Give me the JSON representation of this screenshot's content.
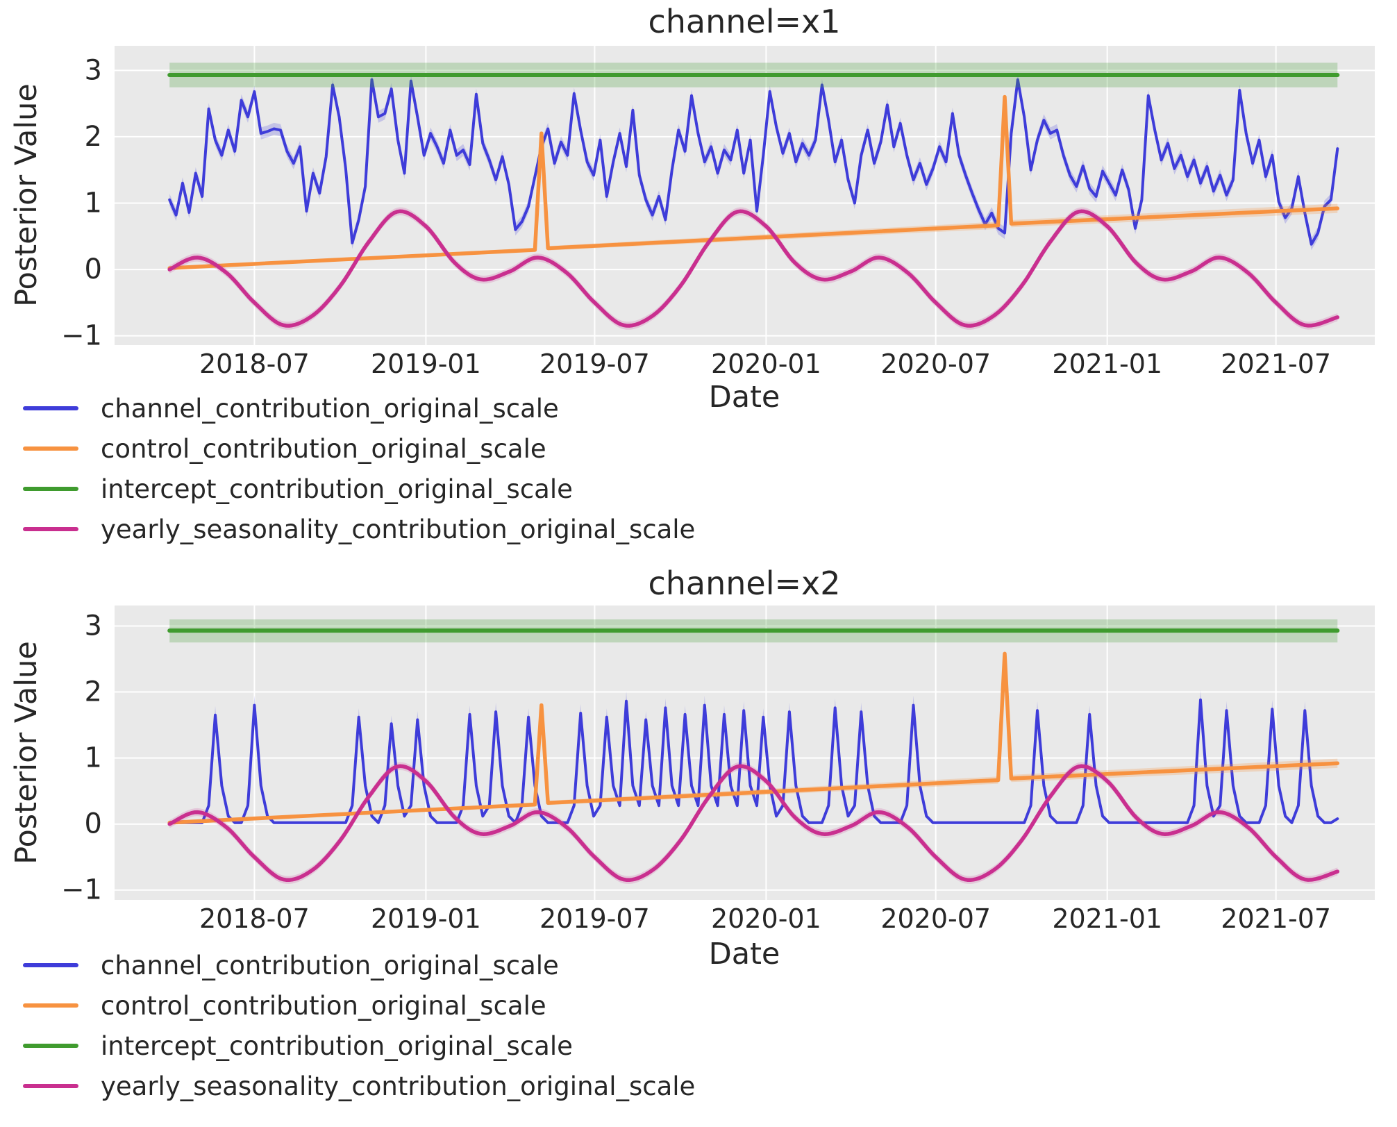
{
  "style": {
    "figure_bg": "#ffffff",
    "plot_bg": "#e9e9e9",
    "grid_color": "#ffffff",
    "text_color": "#262626"
  },
  "shared": {
    "x_ticks": [
      {
        "date": "2018-07-01",
        "label": "2018-07"
      },
      {
        "date": "2019-01-01",
        "label": "2019-01"
      },
      {
        "date": "2019-07-01",
        "label": "2019-07"
      },
      {
        "date": "2020-01-01",
        "label": "2020-01"
      },
      {
        "date": "2020-07-01",
        "label": "2020-07"
      },
      {
        "date": "2021-01-01",
        "label": "2021-01"
      },
      {
        "date": "2021-07-01",
        "label": "2021-07"
      }
    ],
    "seasonal_points": [
      [
        "2018-04-01",
        0.0
      ],
      [
        "2018-05-01",
        0.18
      ],
      [
        "2018-06-01",
        -0.05
      ],
      [
        "2018-07-01",
        -0.5
      ],
      [
        "2018-08-01",
        -0.84
      ],
      [
        "2018-09-01",
        -0.7
      ],
      [
        "2018-10-01",
        -0.25
      ],
      [
        "2018-11-01",
        0.42
      ],
      [
        "2018-12-01",
        0.87
      ],
      [
        "2019-01-01",
        0.65
      ],
      [
        "2019-02-01",
        0.1
      ],
      [
        "2019-03-01",
        -0.15
      ],
      [
        "2019-04-01",
        -0.03
      ],
      [
        "2019-05-01",
        0.18
      ],
      [
        "2019-06-01",
        -0.05
      ],
      [
        "2019-07-01",
        -0.5
      ],
      [
        "2019-08-01",
        -0.84
      ],
      [
        "2019-09-01",
        -0.7
      ],
      [
        "2019-10-01",
        -0.25
      ],
      [
        "2019-11-01",
        0.42
      ],
      [
        "2019-12-01",
        0.87
      ],
      [
        "2020-01-01",
        0.65
      ],
      [
        "2020-02-01",
        0.1
      ],
      [
        "2020-03-01",
        -0.15
      ],
      [
        "2020-04-01",
        -0.03
      ],
      [
        "2020-05-01",
        0.18
      ],
      [
        "2020-06-01",
        -0.05
      ],
      [
        "2020-07-01",
        -0.5
      ],
      [
        "2020-08-01",
        -0.84
      ],
      [
        "2020-09-01",
        -0.7
      ],
      [
        "2020-10-01",
        -0.25
      ],
      [
        "2020-11-01",
        0.42
      ],
      [
        "2020-12-01",
        0.87
      ],
      [
        "2021-01-01",
        0.65
      ],
      [
        "2021-02-01",
        0.1
      ],
      [
        "2021-03-01",
        -0.15
      ],
      [
        "2021-04-01",
        -0.03
      ],
      [
        "2021-05-01",
        0.18
      ],
      [
        "2021-06-01",
        -0.05
      ],
      [
        "2021-07-01",
        -0.5
      ],
      [
        "2021-08-01",
        -0.84
      ],
      [
        "2021-09-05",
        -0.72
      ]
    ]
  },
  "chart_data": [
    {
      "type": "line",
      "title": "channel=x1",
      "xlabel": "Date",
      "ylabel": "Posterior Value",
      "xlim": [
        "2018-02-01",
        "2021-10-15"
      ],
      "ylim": [
        -1.14,
        3.37
      ],
      "data_range": [
        "2018-04-01",
        "2021-09-05"
      ],
      "y_ticks": [
        {
          "v": 3,
          "label": "3"
        },
        {
          "v": 2,
          "label": "2"
        },
        {
          "v": 1,
          "label": "1"
        },
        {
          "v": 0,
          "label": "0"
        },
        {
          "v": -1,
          "label": "−1"
        }
      ],
      "grid": true,
      "legend_position": "below-left",
      "series": [
        {
          "name": "channel_contribution_original_scale",
          "short": "channel",
          "kind": "weekly",
          "start": "2018-04-01",
          "step_days": 7,
          "color": "#3e3cd9",
          "band_color": "rgba(62,60,217,0.22)",
          "band": 0.09,
          "width": 4,
          "values": [
            1.05,
            0.82,
            1.3,
            0.86,
            1.45,
            1.1,
            2.42,
            1.95,
            1.72,
            2.1,
            1.78,
            2.55,
            2.3,
            2.68,
            2.05,
            2.08,
            2.12,
            2.1,
            1.78,
            1.6,
            1.85,
            0.88,
            1.45,
            1.15,
            1.7,
            2.78,
            2.3,
            1.52,
            0.4,
            0.75,
            1.25,
            2.86,
            2.3,
            2.35,
            2.72,
            1.95,
            1.45,
            2.84,
            2.3,
            1.72,
            2.05,
            1.85,
            1.6,
            2.1,
            1.72,
            1.8,
            1.58,
            2.64,
            1.9,
            1.65,
            1.35,
            1.7,
            1.28,
            0.6,
            0.72,
            0.95,
            1.4,
            1.85,
            2.12,
            1.6,
            1.92,
            1.72,
            2.65,
            2.1,
            1.62,
            1.42,
            1.95,
            1.1,
            1.62,
            2.05,
            1.55,
            2.4,
            1.42,
            1.05,
            0.82,
            1.1,
            0.75,
            1.5,
            2.1,
            1.78,
            2.62,
            2.05,
            1.62,
            1.85,
            1.45,
            1.8,
            1.65,
            2.1,
            1.45,
            1.95,
            0.88,
            1.72,
            2.68,
            2.15,
            1.75,
            2.05,
            1.62,
            1.9,
            1.72,
            1.95,
            2.78,
            2.25,
            1.62,
            1.95,
            1.35,
            1.0,
            1.72,
            2.1,
            1.6,
            1.92,
            2.48,
            1.85,
            2.2,
            1.72,
            1.35,
            1.6,
            1.28,
            1.52,
            1.85,
            1.62,
            2.35,
            1.72,
            1.42,
            1.15,
            0.9,
            0.68,
            0.85,
            0.62,
            0.55,
            2.05,
            2.86,
            2.3,
            1.5,
            1.95,
            2.25,
            2.05,
            2.1,
            1.72,
            1.42,
            1.25,
            1.56,
            1.22,
            1.1,
            1.48,
            1.3,
            1.12,
            1.5,
            1.2,
            0.62,
            1.05,
            2.62,
            2.1,
            1.65,
            1.9,
            1.52,
            1.72,
            1.4,
            1.65,
            1.3,
            1.55,
            1.18,
            1.42,
            1.12,
            1.35,
            2.7,
            2.05,
            1.6,
            1.95,
            1.4,
            1.72,
            1.02,
            0.78,
            0.92,
            1.4,
            0.85,
            0.38,
            0.55,
            0.95,
            1.05,
            1.82
          ]
        },
        {
          "name": "control_contribution_original_scale",
          "short": "control",
          "kind": "trend",
          "color": "#f79240",
          "band_color": "rgba(247,146,64,0.25)",
          "band_grow": true,
          "band_min": 0.015,
          "band_max": 0.07,
          "width": 5.5,
          "points": [
            [
              "2018-04-01",
              0.02
            ],
            [
              "2019-04-28",
              0.295
            ],
            [
              "2019-05-05",
              2.05
            ],
            [
              "2019-05-12",
              0.32
            ],
            [
              "2020-09-06",
              0.665
            ],
            [
              "2020-09-13",
              2.6
            ],
            [
              "2020-09-20",
              0.69
            ],
            [
              "2021-09-05",
              0.92
            ]
          ]
        },
        {
          "name": "intercept_contribution_original_scale",
          "short": "intercept",
          "kind": "const",
          "value": 2.93,
          "band_lo": 2.745,
          "band_hi": 3.115,
          "color": "#3f9b2e",
          "band_color": "rgba(63,155,46,0.25)",
          "width": 6
        },
        {
          "name": "yearly_seasonality_contribution_original_scale",
          "short": "yearly-seasonality",
          "kind": "seasonal",
          "band": 0.06,
          "color": "#c92f8f",
          "band_color": "rgba(201,47,143,0.18)",
          "width": 5.5
        }
      ]
    },
    {
      "type": "line",
      "title": "channel=x2",
      "xlabel": "Date",
      "ylabel": "Posterior Value",
      "xlim": [
        "2018-02-01",
        "2021-10-15"
      ],
      "ylim": [
        -1.15,
        3.31
      ],
      "data_range": [
        "2018-04-01",
        "2021-09-05"
      ],
      "y_ticks": [
        {
          "v": 3,
          "label": "3"
        },
        {
          "v": 2,
          "label": "2"
        },
        {
          "v": 1,
          "label": "1"
        },
        {
          "v": 0,
          "label": "0"
        },
        {
          "v": -1,
          "label": "−1"
        }
      ],
      "grid": true,
      "legend_position": "below-left",
      "series": [
        {
          "name": "channel_contribution_original_scale",
          "short": "channel",
          "kind": "weekly",
          "start": "2018-04-01",
          "step_days": 7,
          "color": "#3e3cd9",
          "band_color": "rgba(62,60,217,0.22)",
          "band_prop": true,
          "width": 4,
          "values": [
            0.02,
            0.02,
            0.02,
            0.02,
            0.02,
            0.02,
            0.28,
            1.65,
            0.58,
            0.12,
            0.02,
            0.02,
            0.28,
            1.8,
            0.58,
            0.12,
            0.02,
            0.02,
            0.02,
            0.02,
            0.02,
            0.02,
            0.02,
            0.02,
            0.02,
            0.02,
            0.02,
            0.02,
            0.28,
            1.62,
            0.58,
            0.12,
            0.02,
            0.28,
            1.52,
            0.58,
            0.12,
            0.28,
            1.58,
            0.58,
            0.12,
            0.02,
            0.02,
            0.02,
            0.02,
            0.28,
            1.66,
            0.58,
            0.12,
            0.28,
            1.7,
            0.58,
            0.12,
            0.02,
            0.28,
            1.62,
            0.58,
            0.12,
            0.02,
            0.02,
            0.02,
            0.02,
            0.28,
            1.68,
            0.58,
            0.12,
            0.28,
            1.62,
            0.58,
            0.28,
            1.86,
            0.58,
            0.28,
            1.58,
            0.58,
            0.28,
            1.76,
            0.58,
            0.28,
            1.66,
            0.58,
            0.28,
            1.8,
            0.58,
            0.28,
            1.66,
            0.58,
            0.28,
            1.72,
            0.58,
            0.28,
            1.62,
            0.58,
            0.12,
            0.28,
            1.7,
            0.58,
            0.12,
            0.02,
            0.02,
            0.02,
            0.28,
            1.76,
            0.58,
            0.12,
            0.28,
            1.7,
            0.58,
            0.12,
            0.02,
            0.02,
            0.02,
            0.02,
            0.28,
            1.8,
            0.58,
            0.12,
            0.02,
            0.02,
            0.02,
            0.02,
            0.02,
            0.02,
            0.02,
            0.02,
            0.02,
            0.02,
            0.02,
            0.02,
            0.02,
            0.02,
            0.02,
            0.28,
            1.72,
            0.58,
            0.12,
            0.02,
            0.02,
            0.02,
            0.02,
            0.28,
            1.66,
            0.58,
            0.12,
            0.02,
            0.02,
            0.02,
            0.02,
            0.02,
            0.02,
            0.02,
            0.02,
            0.02,
            0.02,
            0.02,
            0.02,
            0.02,
            0.28,
            1.88,
            0.58,
            0.12,
            0.28,
            1.72,
            0.58,
            0.12,
            0.02,
            0.02,
            0.02,
            0.28,
            1.74,
            0.58,
            0.12,
            0.02,
            0.28,
            1.72,
            0.58,
            0.12,
            0.02,
            0.02,
            0.08
          ]
        },
        {
          "name": "control_contribution_original_scale",
          "short": "control",
          "kind": "trend",
          "color": "#f79240",
          "band_color": "rgba(247,146,64,0.25)",
          "band_grow": true,
          "band_min": 0.015,
          "band_max": 0.07,
          "width": 5.5,
          "points": [
            [
              "2018-04-01",
              0.02
            ],
            [
              "2019-04-28",
              0.295
            ],
            [
              "2019-05-05",
              1.8
            ],
            [
              "2019-05-12",
              0.32
            ],
            [
              "2020-09-06",
              0.665
            ],
            [
              "2020-09-13",
              2.58
            ],
            [
              "2020-09-20",
              0.69
            ],
            [
              "2021-09-05",
              0.92
            ]
          ]
        },
        {
          "name": "intercept_contribution_original_scale",
          "short": "intercept",
          "kind": "const",
          "value": 2.93,
          "band_lo": 2.75,
          "band_hi": 3.1,
          "color": "#3f9b2e",
          "band_color": "rgba(63,155,46,0.25)",
          "width": 6
        },
        {
          "name": "yearly_seasonality_contribution_original_scale",
          "short": "yearly-seasonality",
          "kind": "seasonal",
          "band": 0.06,
          "color": "#c92f8f",
          "band_color": "rgba(201,47,143,0.18)",
          "width": 5.5
        }
      ]
    }
  ]
}
